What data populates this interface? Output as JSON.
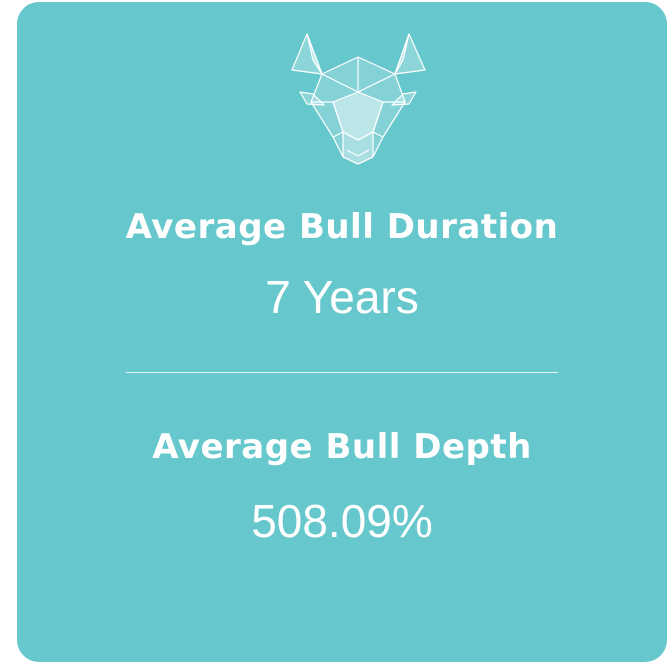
{
  "stats": [
    {
      "label": "Average Bull Duration",
      "value": "7 Years"
    },
    {
      "label": "Average Bull Depth",
      "value": "508.09%"
    }
  ]
}
